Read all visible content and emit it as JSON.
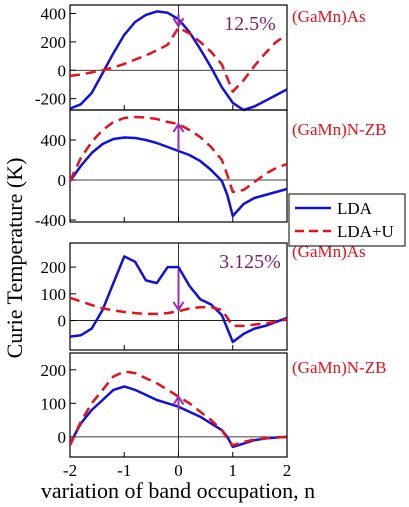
{
  "chart_data": {
    "type": "line",
    "ylabel": "Curie Temperature (K)",
    "xlabel": "variation of band occupation, n",
    "xlim": [
      -2,
      2
    ],
    "xticks": [
      "-2",
      "-1",
      "0",
      "1",
      "2"
    ],
    "legend": {
      "placement": "right",
      "entries": [
        "LDA",
        "LDA+U"
      ]
    },
    "colors": {
      "LDA": "#1010e0",
      "LDA+U": "#e8101a",
      "arrow": "#9a30b0",
      "annotation": "#7a1f6a"
    },
    "panels": [
      {
        "label": "(GaMn)As",
        "annotation": "12.5%",
        "ylim": [
          -280,
          460
        ],
        "yticks": [
          "400",
          "200",
          "0",
          "-200"
        ],
        "arrow": {
          "x": 0,
          "from": 395,
          "to": 310
        },
        "series": [
          {
            "name": "LDA",
            "x": [
              -2,
              -1.8,
              -1.6,
              -1.4,
              -1.2,
              -1,
              -0.8,
              -0.6,
              -0.4,
              -0.2,
              0,
              0.2,
              0.4,
              0.6,
              0.8,
              1,
              1.2,
              1.4,
              1.6,
              1.8,
              2
            ],
            "y": [
              -270,
              -240,
              -160,
              -20,
              120,
              250,
              340,
              390,
              415,
              405,
              360,
              270,
              150,
              20,
              -120,
              -230,
              -280,
              -255,
              -215,
              -175,
              -135
            ]
          },
          {
            "name": "LDA+U",
            "x": [
              -2,
              -1.8,
              -1.6,
              -1.4,
              -1.2,
              -1,
              -0.8,
              -0.6,
              -0.4,
              -0.2,
              0,
              0.2,
              0.4,
              0.6,
              0.8,
              1,
              1.2,
              1.4,
              1.6,
              1.8,
              2
            ],
            "y": [
              -40,
              -30,
              -15,
              0,
              20,
              45,
              75,
              105,
              140,
              180,
              300,
              260,
              200,
              130,
              40,
              -150,
              -70,
              30,
              120,
              200,
              250
            ]
          }
        ]
      },
      {
        "label": "(GaMn)N-ZB",
        "annotation": "",
        "ylim": [
          -420,
          700
        ],
        "yticks": [
          "400",
          "0",
          "-400"
        ],
        "arrow": {
          "x": 0,
          "from": 290,
          "to": 560
        },
        "series": [
          {
            "name": "LDA",
            "x": [
              -2,
              -1.8,
              -1.6,
              -1.4,
              -1.2,
              -1,
              -0.8,
              -0.6,
              -0.4,
              -0.2,
              0,
              0.2,
              0.4,
              0.6,
              0.8,
              0.9,
              1,
              1.2,
              1.4,
              1.6,
              1.8,
              2
            ],
            "y": [
              -10,
              140,
              270,
              360,
              410,
              425,
              420,
              400,
              370,
              330,
              290,
              250,
              190,
              100,
              -10,
              -150,
              -360,
              -240,
              -180,
              -150,
              -120,
              -90
            ]
          },
          {
            "name": "LDA+U",
            "x": [
              -2,
              -1.8,
              -1.6,
              -1.4,
              -1.2,
              -1,
              -0.8,
              -0.6,
              -0.4,
              -0.2,
              0,
              0.2,
              0.4,
              0.6,
              0.8,
              0.9,
              1,
              1.2,
              1.4,
              1.6,
              1.8,
              2
            ],
            "y": [
              -10,
              220,
              380,
              500,
              580,
              620,
              630,
              625,
              610,
              580,
              560,
              500,
              430,
              330,
              200,
              50,
              -120,
              -100,
              -20,
              60,
              120,
              160
            ]
          }
        ]
      },
      {
        "label": "(GaMn)As",
        "annotation": "3.125%",
        "ylim": [
          -110,
          290
        ],
        "yticks": [
          "200",
          "100",
          "0"
        ],
        "arrow": {
          "x": 0,
          "from": 190,
          "to": 40
        },
        "series": [
          {
            "name": "LDA",
            "x": [
              -2,
              -1.8,
              -1.6,
              -1.4,
              -1.2,
              -1,
              -0.8,
              -0.6,
              -0.4,
              -0.2,
              0,
              0.2,
              0.4,
              0.6,
              0.8,
              1,
              1.2,
              1.4,
              1.6,
              1.8,
              2
            ],
            "y": [
              -60,
              -55,
              -30,
              40,
              140,
              240,
              220,
              150,
              140,
              200,
              200,
              130,
              80,
              60,
              20,
              -80,
              -50,
              -30,
              -20,
              -5,
              10
            ]
          },
          {
            "name": "LDA+U",
            "x": [
              -2,
              -1.8,
              -1.6,
              -1.4,
              -1.2,
              -1,
              -0.8,
              -0.6,
              -0.4,
              -0.2,
              0,
              0.2,
              0.4,
              0.6,
              0.8,
              1,
              1.2,
              1.4,
              1.6,
              1.8,
              2
            ],
            "y": [
              85,
              72,
              58,
              46,
              38,
              32,
              28,
              25,
              25,
              28,
              35,
              45,
              50,
              50,
              40,
              -20,
              -20,
              -15,
              -10,
              -5,
              5
            ]
          }
        ]
      },
      {
        "label": "(GaMn)N-ZB",
        "annotation": "",
        "ylim": [
          -60,
          250
        ],
        "yticks": [
          "200",
          "100",
          "0"
        ],
        "arrow": {
          "x": 0,
          "from": 80,
          "to": 120
        },
        "series": [
          {
            "name": "LDA",
            "x": [
              -2,
              -1.8,
              -1.6,
              -1.4,
              -1.2,
              -1,
              -0.8,
              -0.6,
              -0.4,
              -0.2,
              0,
              0.2,
              0.4,
              0.6,
              0.8,
              0.9,
              1,
              1.2,
              1.4,
              1.6,
              1.8,
              2
            ],
            "y": [
              -20,
              40,
              80,
              110,
              140,
              150,
              140,
              125,
              110,
              100,
              90,
              75,
              60,
              40,
              20,
              0,
              -30,
              -20,
              -10,
              -5,
              -2,
              0
            ]
          },
          {
            "name": "LDA+U",
            "x": [
              -2,
              -1.8,
              -1.6,
              -1.4,
              -1.2,
              -1,
              -0.8,
              -0.6,
              -0.4,
              -0.2,
              0,
              0.2,
              0.4,
              0.6,
              0.8,
              0.9,
              1,
              1.2,
              1.4,
              1.6,
              1.8,
              2
            ],
            "y": [
              -25,
              45,
              100,
              140,
              180,
              195,
              190,
              175,
              160,
              140,
              120,
              100,
              75,
              50,
              20,
              -5,
              -25,
              -15,
              -8,
              -4,
              -2,
              0
            ]
          }
        ]
      }
    ]
  }
}
